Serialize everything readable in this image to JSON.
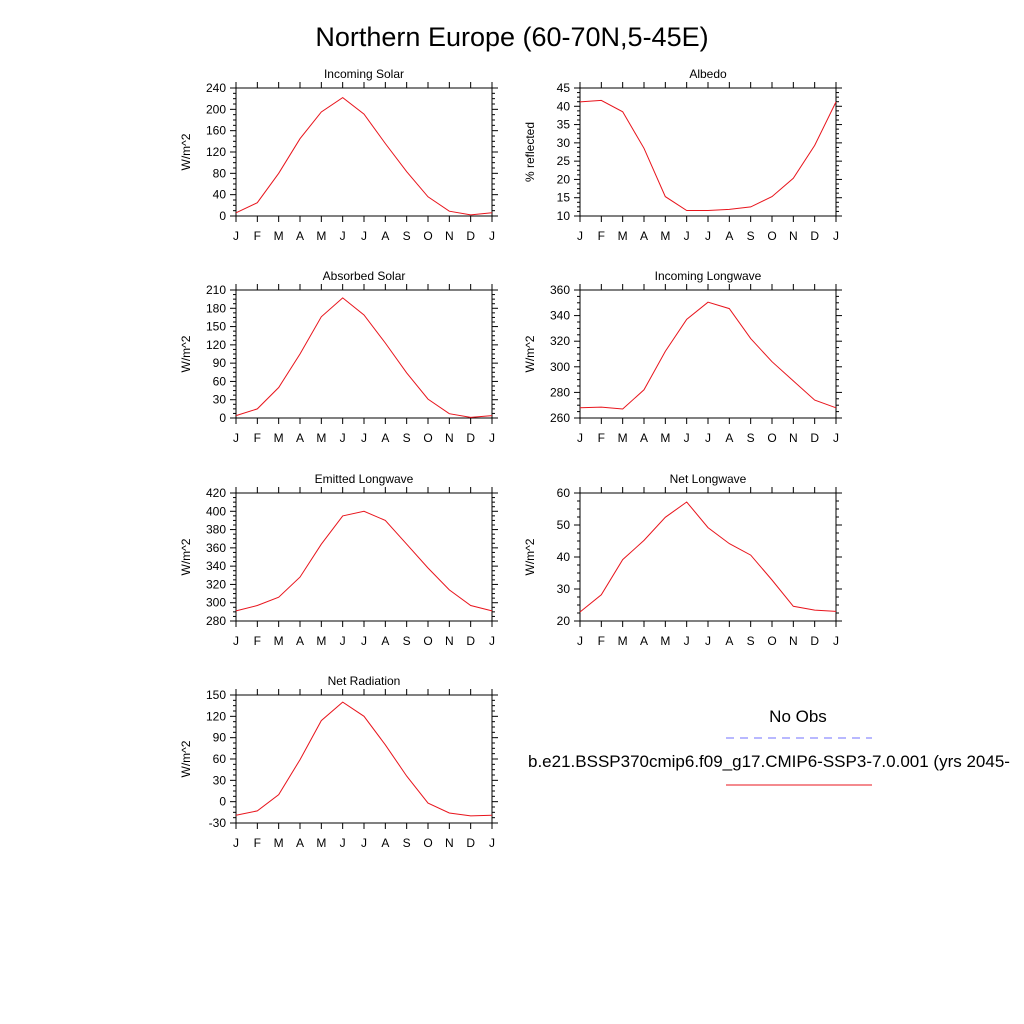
{
  "figure": {
    "title": "Northern Europe (60-70N,5-45E)",
    "month_labels": [
      "J",
      "F",
      "M",
      "A",
      "M",
      "J",
      "J",
      "A",
      "S",
      "O",
      "N",
      "D",
      "J"
    ]
  },
  "colors": {
    "model_line": "#e8141c",
    "obs_line": "#7070ff",
    "axis": "#000000"
  },
  "legend": {
    "obs_label": "No Obs",
    "model_label": "b.e21.BSSP370cmip6.f09_g17.CMIP6-SSP3-7.0.001 (yrs 2045-"
  },
  "chart_data": [
    {
      "type": "line",
      "title": "Incoming Solar",
      "ylabel": "W/m^2",
      "ylim": [
        0,
        240
      ],
      "yticks": [
        0,
        40,
        80,
        120,
        160,
        200,
        240
      ],
      "x": [
        "J",
        "F",
        "M",
        "A",
        "M",
        "J",
        "J",
        "A",
        "S",
        "O",
        "N",
        "D",
        "J"
      ],
      "values": [
        6,
        25,
        80,
        145,
        195,
        222,
        191,
        136,
        83,
        36,
        9,
        2,
        6
      ]
    },
    {
      "type": "line",
      "title": "Albedo",
      "ylabel": "% reflected",
      "ylim": [
        10,
        45
      ],
      "yticks": [
        10,
        15,
        20,
        25,
        30,
        35,
        40,
        45
      ],
      "x": [
        "J",
        "F",
        "M",
        "A",
        "M",
        "J",
        "J",
        "A",
        "S",
        "O",
        "N",
        "D",
        "J"
      ],
      "values": [
        41.2,
        41.6,
        38.5,
        28.5,
        15.3,
        11.5,
        11.5,
        11.8,
        12.5,
        15.3,
        20.3,
        29.3,
        41.2
      ]
    },
    {
      "type": "line",
      "title": "Absorbed Solar",
      "ylabel": "W/m^2",
      "ylim": [
        0,
        210
      ],
      "yticks": [
        0,
        30,
        60,
        90,
        120,
        150,
        180,
        210
      ],
      "x": [
        "J",
        "F",
        "M",
        "A",
        "M",
        "J",
        "J",
        "A",
        "S",
        "O",
        "N",
        "D",
        "J"
      ],
      "values": [
        4,
        15,
        50,
        105,
        166,
        197,
        169,
        123,
        74,
        31,
        7,
        1,
        4
      ]
    },
    {
      "type": "line",
      "title": "Incoming Longwave",
      "ylabel": "W/m^2",
      "ylim": [
        260,
        360
      ],
      "yticks": [
        260,
        280,
        300,
        320,
        340,
        360
      ],
      "x": [
        "J",
        "F",
        "M",
        "A",
        "M",
        "J",
        "J",
        "A",
        "S",
        "O",
        "N",
        "D",
        "J"
      ],
      "values": [
        268,
        268.5,
        267,
        282,
        312,
        337,
        350.5,
        345.5,
        322,
        304,
        289,
        274,
        268
      ]
    },
    {
      "type": "line",
      "title": "Emitted Longwave",
      "ylabel": "W/m^2",
      "ylim": [
        280,
        420
      ],
      "yticks": [
        280,
        300,
        320,
        340,
        360,
        380,
        400,
        420
      ],
      "x": [
        "J",
        "F",
        "M",
        "A",
        "M",
        "J",
        "J",
        "A",
        "S",
        "O",
        "N",
        "D",
        "J"
      ],
      "values": [
        291,
        297,
        306,
        328,
        364,
        395,
        400,
        390,
        364,
        338,
        314,
        297,
        291
      ]
    },
    {
      "type": "line",
      "title": "Net Longwave",
      "ylabel": "W/m^2",
      "ylim": [
        20,
        60
      ],
      "yticks": [
        20,
        30,
        40,
        50,
        60
      ],
      "x": [
        "J",
        "F",
        "M",
        "A",
        "M",
        "J",
        "J",
        "A",
        "S",
        "O",
        "N",
        "D",
        "J"
      ],
      "values": [
        22.8,
        28.2,
        39.2,
        45.2,
        52.4,
        57.2,
        49.2,
        44.2,
        40.6,
        32.8,
        24.6,
        23.4,
        23.0
      ]
    },
    {
      "type": "line",
      "title": "Net Radiation",
      "ylabel": "W/m^2",
      "ylim": [
        -30,
        150
      ],
      "yticks": [
        -30,
        0,
        30,
        60,
        90,
        120,
        150
      ],
      "x": [
        "J",
        "F",
        "M",
        "A",
        "M",
        "J",
        "J",
        "A",
        "S",
        "O",
        "N",
        "D",
        "J"
      ],
      "values": [
        -19,
        -13,
        10,
        59,
        114,
        140,
        120,
        80,
        36,
        -2,
        -16,
        -20,
        -19
      ]
    }
  ]
}
